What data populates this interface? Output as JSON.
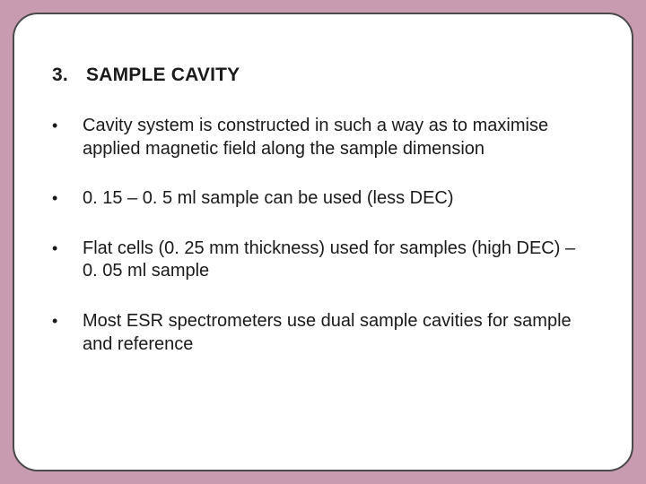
{
  "slide": {
    "background_color": "#c99bb0",
    "frame_border_color": "#4a4a4a",
    "frame_fill": "#ffffff",
    "text_color": "#1a1a1a",
    "heading_number": "3.",
    "heading_text": "SAMPLE CAVITY",
    "heading_fontsize": 21,
    "body_fontsize": 20,
    "bullets": [
      {
        "text": "Cavity system is constructed in such a way as to maximise applied magnetic field along the sample dimension"
      },
      {
        "text": "0. 15 – 0. 5 ml sample can be used (less DEC)"
      },
      {
        "text": "Flat cells (0. 25 mm thickness) used for samples (high DEC) – 0. 05 ml sample"
      },
      {
        "text": "Most ESR spectrometers use dual sample cavities for sample and reference"
      }
    ]
  }
}
